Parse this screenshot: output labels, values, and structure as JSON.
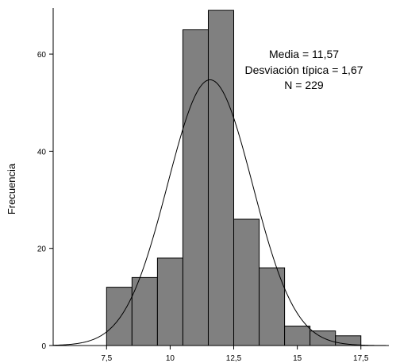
{
  "chart_data": {
    "type": "bar",
    "title": "",
    "xlabel": "",
    "ylabel": "Frecuencia",
    "bin_width": 1,
    "bins": [
      {
        "center": 8,
        "value": 12
      },
      {
        "center": 9,
        "value": 14
      },
      {
        "center": 10,
        "value": 18
      },
      {
        "center": 11,
        "value": 65
      },
      {
        "center": 12,
        "value": 69
      },
      {
        "center": 13,
        "value": 26
      },
      {
        "center": 14,
        "value": 16
      },
      {
        "center": 15,
        "value": 4
      },
      {
        "center": 16,
        "value": 3
      },
      {
        "center": 17,
        "value": 2
      }
    ],
    "xlim": [
      5.4,
      18.6
    ],
    "ylim": [
      0,
      69.5
    ],
    "x_ticks": [
      {
        "value": 7.5,
        "label": "7,5"
      },
      {
        "value": 10,
        "label": "10"
      },
      {
        "value": 12.5,
        "label": "12,5"
      },
      {
        "value": 15,
        "label": "15"
      },
      {
        "value": 17.5,
        "label": "17,5"
      }
    ],
    "y_ticks": [
      {
        "value": 0,
        "label": "0"
      },
      {
        "value": 20,
        "label": "20"
      },
      {
        "value": 40,
        "label": "40"
      },
      {
        "value": 60,
        "label": "60"
      }
    ],
    "normal_curve": {
      "mean": 11.57,
      "sd": 1.67,
      "n": 229
    },
    "stats": {
      "mean": "Media = 11,57",
      "sd": "Desviación típica = 1,67",
      "n": "N = 229"
    },
    "grid": false,
    "colors": {
      "bar_fill": "#808080",
      "bar_stroke": "#000000",
      "curve": "#000000",
      "axis": "#000000"
    }
  }
}
